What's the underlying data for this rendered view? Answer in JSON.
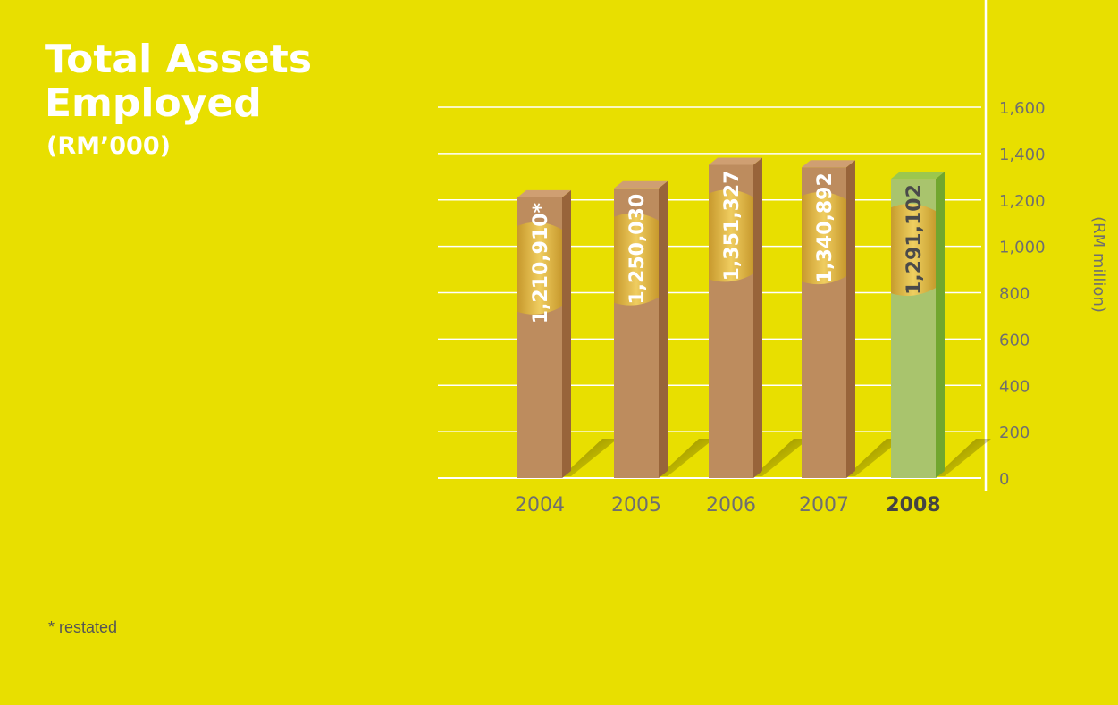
{
  "page": {
    "background": "#e8df00"
  },
  "title": {
    "line1": "Total Assets",
    "line2": "Employed",
    "unit": "(RM’000)"
  },
  "footnote": "* restated",
  "colors": {
    "bar_past": "#bd8c5e",
    "bar_past_top": "#cf9f72",
    "bar_past_side": "#98643a",
    "bar_current": "#a9c46d",
    "bar_current_top": "#9cc74d",
    "bar_current_side": "#71a62e",
    "band": "#c89a2a",
    "label_light": "#ffffff",
    "label_dark": "#4a4a4a",
    "axis_text": "#6f6f6f",
    "grid": "#ffffff"
  },
  "chart_data": {
    "type": "bar",
    "categories": [
      "2004",
      "2005",
      "2006",
      "2007",
      "2008"
    ],
    "values": [
      1210910,
      1250030,
      1351327,
      1340892,
      1291102
    ],
    "value_labels": [
      "1,210,910*",
      "1,250,030",
      "1,351,327",
      "1,340,892",
      "1,291,102"
    ],
    "highlight_category": "2008",
    "ylabel": "(RM million)",
    "ylim": [
      0,
      1600
    ],
    "yticks": [
      0,
      200,
      400,
      600,
      800,
      1000,
      1200,
      1400,
      1600
    ],
    "ytick_labels": [
      "0",
      "200",
      "400",
      "600",
      "800",
      "1,000",
      "1,200",
      "1,400",
      "1,600"
    ],
    "yaxis_side": "right",
    "grid": true,
    "annotation": "* restated"
  }
}
